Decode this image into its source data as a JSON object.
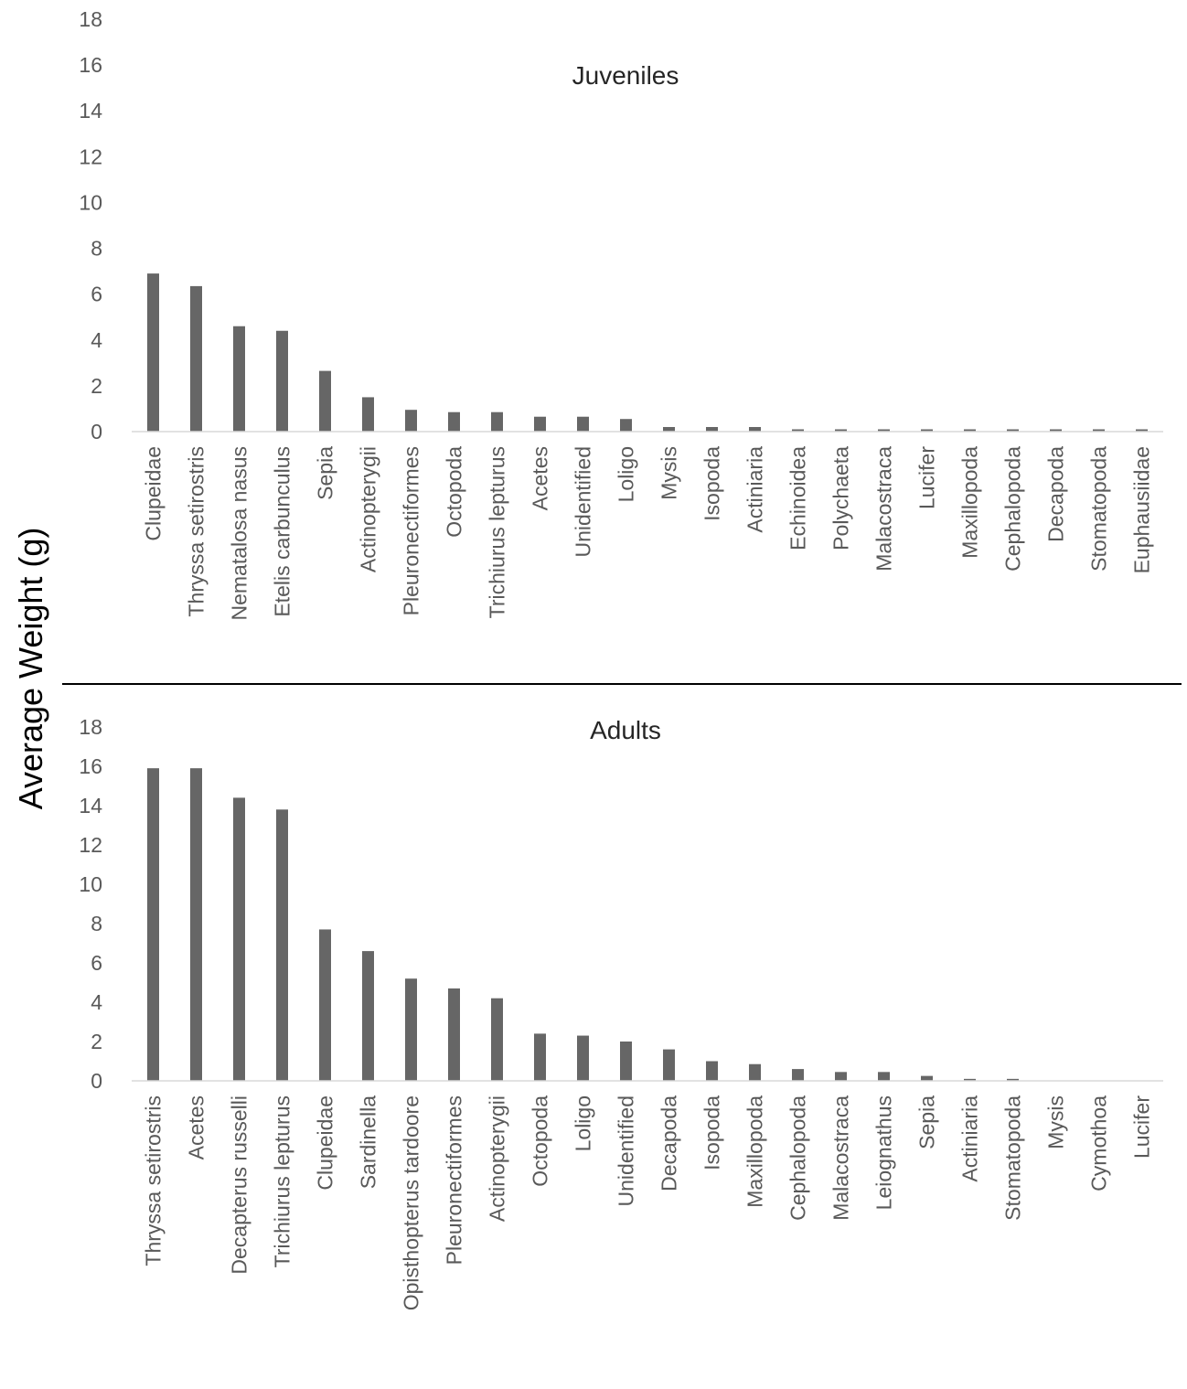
{
  "ylabel": "Average Weight (g)",
  "chart_data": [
    {
      "type": "bar",
      "title": "Juveniles",
      "xlabel": "",
      "ylabel": "Average Weight (g)",
      "ylim": [
        0,
        18
      ],
      "yticks": [
        0,
        2,
        4,
        6,
        8,
        10,
        12,
        14,
        16,
        18
      ],
      "grid": false,
      "color": "#666666",
      "categories": [
        "Clupeidae",
        "Thryssa setirostris",
        "Nematalosa nasus",
        "Etelis carbunculus",
        "Sepia",
        "Actinopterygii",
        "Pleuronectiformes",
        "Octopoda",
        "Trichiurus lepturus",
        "Acetes",
        "Unidentified",
        "Loligo",
        "Mysis",
        "Isopoda",
        "Actiniaria",
        "Echinoidea",
        "Polychaeta",
        "Malacostraca",
        "Lucifer",
        "Maxillopoda",
        "Cephalopoda",
        "Decapoda",
        "Stomatopoda",
        "Euphausiidae"
      ],
      "values": [
        6.9,
        6.35,
        4.6,
        4.4,
        2.65,
        1.5,
        0.95,
        0.85,
        0.85,
        0.65,
        0.65,
        0.55,
        0.2,
        0.2,
        0.2,
        0.1,
        0.1,
        0.1,
        0.1,
        0.1,
        0.1,
        0.1,
        0.1,
        0.1
      ]
    },
    {
      "type": "bar",
      "title": "Adults",
      "xlabel": "",
      "ylabel": "Average Weight (g)",
      "ylim": [
        0,
        18
      ],
      "yticks": [
        0,
        2,
        4,
        6,
        8,
        10,
        12,
        14,
        16,
        18
      ],
      "grid": false,
      "color": "#666666",
      "categories": [
        "Thryssa setirostris",
        "Acetes",
        "Decapterus russelli",
        "Trichiurus lepturus",
        "Clupeidae",
        "Sardinella",
        "Opisthopterus tardoore",
        "Pleuronectiformes",
        "Actinopterygii",
        "Octopoda",
        "Loligo",
        "Unidentified",
        "Decapoda",
        "Isopoda",
        "Maxillopoda",
        "Cephalopoda",
        "Malacostraca",
        "Leiognathus",
        "Sepia",
        "Actiniaria",
        "Stomatopoda",
        "Mysis",
        "Cymothoa",
        "Lucifer"
      ],
      "values": [
        15.9,
        15.9,
        14.4,
        13.8,
        7.7,
        6.6,
        5.2,
        4.7,
        4.2,
        2.4,
        2.3,
        2.0,
        1.6,
        1.0,
        0.85,
        0.6,
        0.45,
        0.45,
        0.25,
        0.1,
        0.1,
        0,
        0,
        0
      ]
    }
  ]
}
